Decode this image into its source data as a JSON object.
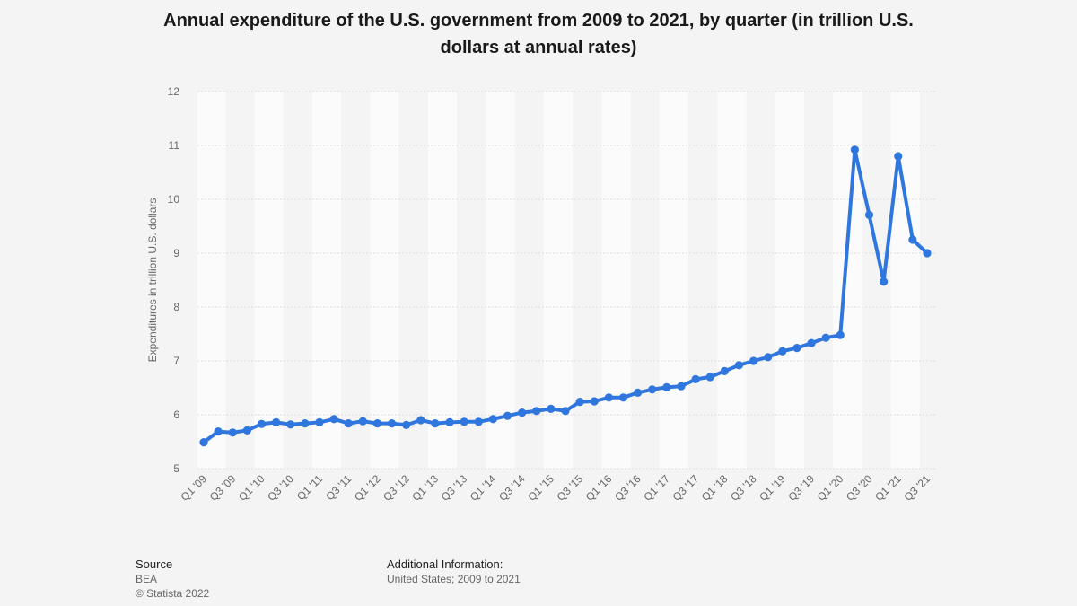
{
  "chart_data": {
    "type": "line",
    "title": "Annual expenditure of the U.S. government from 2009 to 2021, by quarter (in trillion U.S. dollars at annual rates)",
    "ylabel": "Expenditures in trillion U.S. dollars",
    "xlabel": "",
    "ylim": [
      5,
      12
    ],
    "yticks": [
      5,
      6,
      7,
      8,
      9,
      10,
      11,
      12
    ],
    "grid": true,
    "x": [
      "Q1 '09",
      "Q2 '09",
      "Q3 '09",
      "Q4 '09",
      "Q1 '10",
      "Q2 '10",
      "Q3 '10",
      "Q4 '10",
      "Q1 '11",
      "Q2 '11",
      "Q3 '11",
      "Q4 '11",
      "Q1 '12",
      "Q2 '12",
      "Q3 '12",
      "Q4 '12",
      "Q1 '13",
      "Q2 '13",
      "Q3 '13",
      "Q4 '13",
      "Q1 '14",
      "Q2 '14",
      "Q3 '14",
      "Q4 '14",
      "Q1 '15",
      "Q2 '15",
      "Q3 '15",
      "Q4 '15",
      "Q1 '16",
      "Q2 '16",
      "Q3 '16",
      "Q4 '16",
      "Q1 '17",
      "Q2 '17",
      "Q3 '17",
      "Q4 '17",
      "Q1 '18",
      "Q2 '18",
      "Q3 '18",
      "Q4 '18",
      "Q1 '19",
      "Q2 '19",
      "Q3 '19",
      "Q4 '19",
      "Q1 '20",
      "Q2 '20",
      "Q3 '20",
      "Q4 '20",
      "Q1 '21",
      "Q2 '21",
      "Q3 '21"
    ],
    "xtick_labels": [
      "Q1 '09",
      "Q3 '09",
      "Q1 '10",
      "Q3 '10",
      "Q1 '11",
      "Q3 '11",
      "Q1 '12",
      "Q3 '12",
      "Q1 '13",
      "Q3 '13",
      "Q1 '14",
      "Q3 '14",
      "Q1 '15",
      "Q3 '15",
      "Q1 '16",
      "Q3 '16",
      "Q1 '17",
      "Q3 '17",
      "Q1 '18",
      "Q3 '18",
      "Q1 '19",
      "Q3 '19",
      "Q1 '20",
      "Q3 '20",
      "Q1 '21",
      "Q3 '21"
    ],
    "series": [
      {
        "name": "",
        "color": "#2f76de",
        "values": [
          5.49,
          5.69,
          5.67,
          5.71,
          5.83,
          5.86,
          5.82,
          5.84,
          5.86,
          5.92,
          5.84,
          5.88,
          5.84,
          5.84,
          5.81,
          5.9,
          5.84,
          5.86,
          5.87,
          5.87,
          5.92,
          5.98,
          6.04,
          6.07,
          6.11,
          6.07,
          6.24,
          6.25,
          6.32,
          6.32,
          6.41,
          6.47,
          6.51,
          6.53,
          6.66,
          6.7,
          6.81,
          6.92,
          7.0,
          7.07,
          7.18,
          7.24,
          7.33,
          7.43,
          7.48,
          10.92,
          9.71,
          8.47,
          10.8,
          9.25,
          9.0
        ]
      }
    ]
  },
  "footer": {
    "source_heading": "Source",
    "source_name": "BEA",
    "copyright": "© Statista 2022",
    "info_heading": "Additional Information:",
    "info_text": "United States; 2009 to 2021"
  },
  "colors": {
    "line": "#2f76de",
    "grid": "#dcdcdc",
    "band": "#fbfbfb",
    "tick_text": "#666666"
  }
}
